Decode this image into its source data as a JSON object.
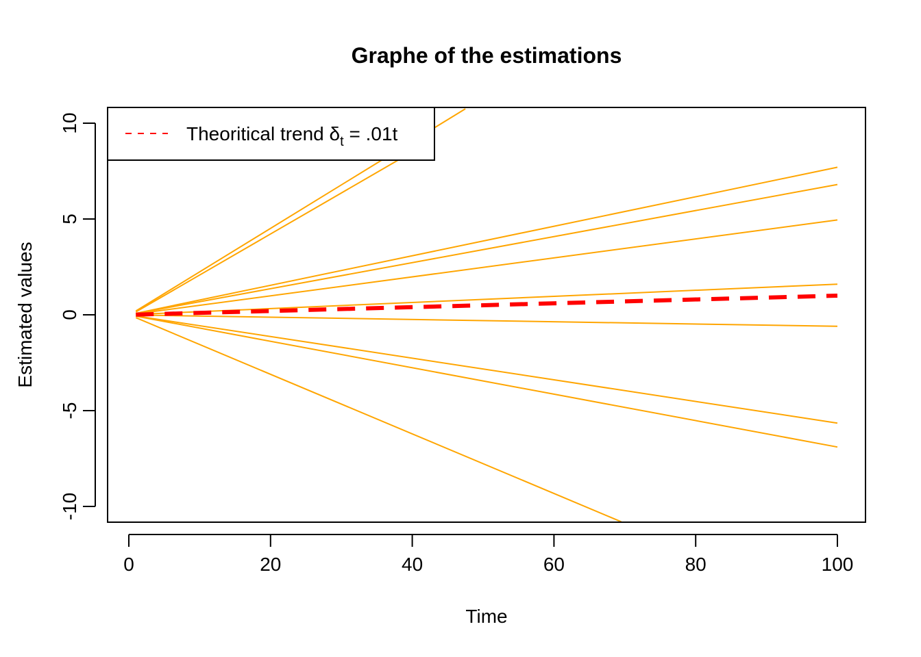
{
  "chart_data": {
    "type": "line",
    "title": "Graphe of the estimations",
    "xlabel": "Time",
    "ylabel": "Estimated values",
    "xlim": [
      0,
      100
    ],
    "ylim": [
      -10,
      10
    ],
    "xticks": [
      "0",
      "20",
      "40",
      "60",
      "80",
      "100"
    ],
    "yticks": [
      "-10",
      "-5",
      "0",
      "5",
      "10"
    ],
    "grid": false,
    "legend": {
      "position": "top-left",
      "entries": [
        {
          "text_main": "Theoritical trend ",
          "symbol": "δ",
          "subscript": "t",
          "text_rest": " = .01t"
        }
      ]
    },
    "trend": {
      "x": [
        1,
        100
      ],
      "y": [
        0.01,
        1.0
      ],
      "color": "#ff0000",
      "style": "dashed"
    },
    "estimation_color": "#ffa500",
    "estimations": [
      {
        "x": [
          1,
          47.5
        ],
        "y": [
          0.2,
          10.75
        ]
      },
      {
        "x": [
          1,
          40
        ],
        "y": [
          0.15,
          8.5
        ]
      },
      {
        "x": [
          1,
          100
        ],
        "y": [
          0.08,
          7.7
        ]
      },
      {
        "x": [
          1,
          100
        ],
        "y": [
          0.07,
          6.8
        ]
      },
      {
        "x": [
          1,
          100
        ],
        "y": [
          0.05,
          4.95
        ]
      },
      {
        "x": [
          1,
          100
        ],
        "y": [
          0.02,
          1.6
        ]
      },
      {
        "x": [
          1,
          100
        ],
        "y": [
          -0.01,
          -0.6
        ]
      },
      {
        "x": [
          1,
          100
        ],
        "y": [
          -0.06,
          -5.65
        ]
      },
      {
        "x": [
          1,
          100
        ],
        "y": [
          -0.07,
          -6.9
        ]
      },
      {
        "x": [
          1,
          69.5
        ],
        "y": [
          -0.15,
          -10.8
        ]
      }
    ]
  }
}
